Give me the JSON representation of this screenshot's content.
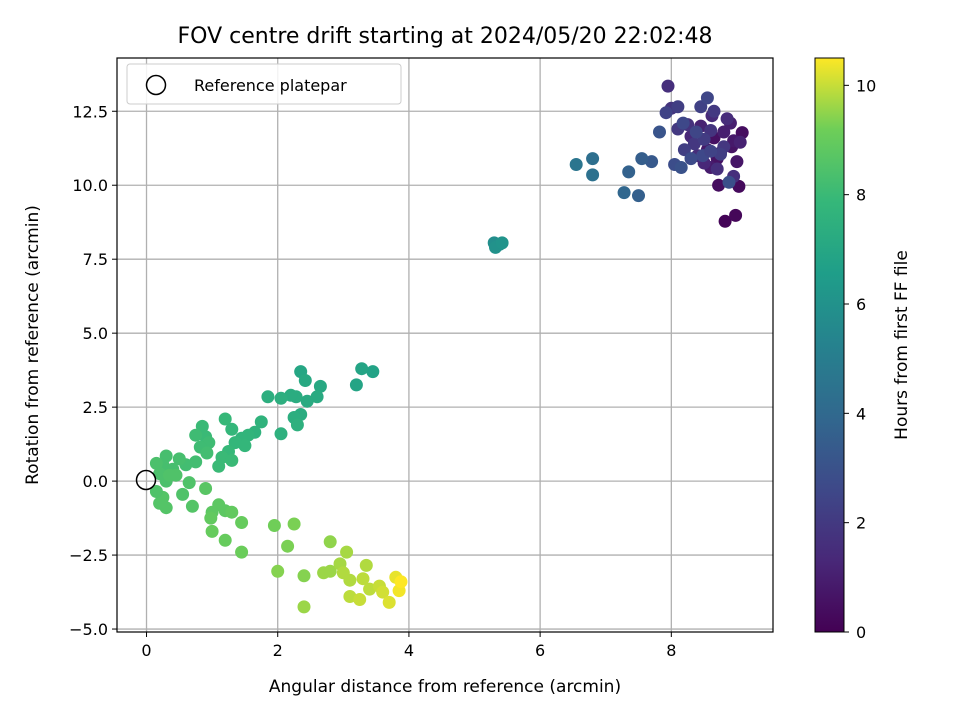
{
  "chart_data": {
    "type": "scatter",
    "title": "FOV centre drift starting at 2024/05/20 22:02:48",
    "xlabel": "Angular distance from reference (arcmin)",
    "ylabel": "Rotation from reference (arcmin)",
    "xlim": [
      -0.45,
      9.55
    ],
    "ylim": [
      -5.1,
      14.3
    ],
    "xticks": [
      0,
      2,
      4,
      6,
      8
    ],
    "xtick_labels": [
      "0",
      "2",
      "4",
      "6",
      "8"
    ],
    "yticks": [
      -5.0,
      -2.5,
      0.0,
      2.5,
      5.0,
      7.5,
      10.0,
      12.5
    ],
    "ytick_labels": [
      "−5.0",
      "−2.5",
      "0.0",
      "2.5",
      "5.0",
      "7.5",
      "10.0",
      "12.5"
    ],
    "grid": true,
    "colormap": "viridis",
    "colorbar": {
      "label": "Hours from first FF file",
      "range": [
        0,
        10.5
      ],
      "ticks": [
        0,
        2,
        4,
        6,
        8,
        10
      ],
      "tick_labels": [
        "0",
        "2",
        "4",
        "6",
        "8",
        "10"
      ]
    },
    "legend": {
      "placement": "top-left",
      "entries": [
        {
          "label": "Reference platepar",
          "marker": "open-circle"
        }
      ]
    },
    "reference_point": {
      "x": 0,
      "y": 0
    },
    "points": [
      [
        8.82,
        8.78,
        0.1
      ],
      [
        8.98,
        8.98,
        0.2
      ],
      [
        9.03,
        9.96,
        0.3
      ],
      [
        8.72,
        10.0,
        0.4
      ],
      [
        9.08,
        11.78,
        0.4
      ],
      [
        8.65,
        11.6,
        0.5
      ],
      [
        8.92,
        11.3,
        0.6
      ],
      [
        8.7,
        10.9,
        0.6
      ],
      [
        9.0,
        10.8,
        0.7
      ],
      [
        8.55,
        11.2,
        0.8
      ],
      [
        8.95,
        11.5,
        0.8
      ],
      [
        8.6,
        10.6,
        0.9
      ],
      [
        8.8,
        11.8,
        1.0
      ],
      [
        8.45,
        12.0,
        1.1
      ],
      [
        8.9,
        12.1,
        1.0
      ],
      [
        8.75,
        11.1,
        1.2
      ],
      [
        9.05,
        11.45,
        1.1
      ],
      [
        8.3,
        11.65,
        1.3
      ],
      [
        8.5,
        10.75,
        1.3
      ],
      [
        8.62,
        12.35,
        1.4
      ],
      [
        8.85,
        12.25,
        1.5
      ],
      [
        8.4,
        11.0,
        1.5
      ],
      [
        8.95,
        10.3,
        1.6
      ],
      [
        8.7,
        10.55,
        1.6
      ],
      [
        8.25,
        12.05,
        1.7
      ],
      [
        8.6,
        11.85,
        1.8
      ],
      [
        8.35,
        11.4,
        1.9
      ],
      [
        8.1,
        11.9,
        2.0
      ],
      [
        8.8,
        11.3,
        1.9
      ],
      [
        8.5,
        11.55,
        2.1
      ],
      [
        8.2,
        11.2,
        2.2
      ],
      [
        8.65,
        12.5,
        2.0
      ],
      [
        8.0,
        12.6,
        1.8
      ],
      [
        7.95,
        13.35,
        1.6
      ],
      [
        8.1,
        12.65,
        2.2
      ],
      [
        7.92,
        12.45,
        2.4
      ],
      [
        8.45,
        12.65,
        2.3
      ],
      [
        8.55,
        12.95,
        2.5
      ],
      [
        8.48,
        11.0,
        2.6
      ],
      [
        8.3,
        10.9,
        2.7
      ],
      [
        8.05,
        10.7,
        2.8
      ],
      [
        8.75,
        11.05,
        2.2
      ],
      [
        8.88,
        10.1,
        2.9
      ],
      [
        8.15,
        10.6,
        3.0
      ],
      [
        7.82,
        11.8,
        3.1
      ],
      [
        8.6,
        11.15,
        2.4
      ],
      [
        8.38,
        11.8,
        2.5
      ],
      [
        8.18,
        12.1,
        2.6
      ],
      [
        7.7,
        10.8,
        3.3
      ],
      [
        7.55,
        10.9,
        3.5
      ],
      [
        7.5,
        9.65,
        3.6
      ],
      [
        7.35,
        10.45,
        3.7
      ],
      [
        7.28,
        9.75,
        3.9
      ],
      [
        6.8,
        10.9,
        4.3
      ],
      [
        6.8,
        10.35,
        4.4
      ],
      [
        6.55,
        10.7,
        4.6
      ],
      [
        5.3,
        8.05,
        5.8
      ],
      [
        5.38,
        8.0,
        5.9
      ],
      [
        5.32,
        7.9,
        6.0
      ],
      [
        5.42,
        8.05,
        6.1
      ],
      [
        3.45,
        3.7,
        6.8
      ],
      [
        3.28,
        3.8,
        6.9
      ],
      [
        3.2,
        3.25,
        6.9
      ],
      [
        2.35,
        3.7,
        7.0
      ],
      [
        2.42,
        3.4,
        7.1
      ],
      [
        2.65,
        3.2,
        7.1
      ],
      [
        2.6,
        2.85,
        7.2
      ],
      [
        2.45,
        2.7,
        7.2
      ],
      [
        2.28,
        2.85,
        7.3
      ],
      [
        2.2,
        2.9,
        7.3
      ],
      [
        2.05,
        2.8,
        7.4
      ],
      [
        1.85,
        2.85,
        7.4
      ],
      [
        2.35,
        2.25,
        7.3
      ],
      [
        2.25,
        2.15,
        7.4
      ],
      [
        2.3,
        1.9,
        7.5
      ],
      [
        2.05,
        1.6,
        7.5
      ],
      [
        1.75,
        2.0,
        7.6
      ],
      [
        1.65,
        1.65,
        7.6
      ],
      [
        1.55,
        1.55,
        7.7
      ],
      [
        1.45,
        1.45,
        7.7
      ],
      [
        1.5,
        1.2,
        7.8
      ],
      [
        1.35,
        1.3,
        7.8
      ],
      [
        1.3,
        1.75,
        7.8
      ],
      [
        1.2,
        2.1,
        7.9
      ],
      [
        1.25,
        1.0,
        7.9
      ],
      [
        1.15,
        0.8,
        8.0
      ],
      [
        1.3,
        0.7,
        8.0
      ],
      [
        1.1,
        0.5,
        8.0
      ],
      [
        0.85,
        1.85,
        8.0
      ],
      [
        0.9,
        1.5,
        8.0
      ],
      [
        0.75,
        1.55,
        8.1
      ],
      [
        0.95,
        1.3,
        8.1
      ],
      [
        0.82,
        1.15,
        8.1
      ],
      [
        0.92,
        0.95,
        8.2
      ],
      [
        0.75,
        0.65,
        8.2
      ],
      [
        0.6,
        0.55,
        8.2
      ],
      [
        0.5,
        0.75,
        8.3
      ],
      [
        0.4,
        0.4,
        8.3
      ],
      [
        0.3,
        0.85,
        8.3
      ],
      [
        0.25,
        0.55,
        8.3
      ],
      [
        0.2,
        0.25,
        8.4
      ],
      [
        0.15,
        0.6,
        8.4
      ],
      [
        0.3,
        0.0,
        8.4
      ],
      [
        0.45,
        0.2,
        8.5
      ],
      [
        0.65,
        -0.05,
        8.5
      ],
      [
        0.55,
        -0.45,
        8.5
      ],
      [
        0.7,
        -0.85,
        8.6
      ],
      [
        0.25,
        -0.55,
        8.6
      ],
      [
        0.3,
        -0.9,
        8.6
      ],
      [
        0.2,
        -0.75,
        8.6
      ],
      [
        0.15,
        -0.35,
        8.5
      ],
      [
        0.35,
        0.2,
        8.5
      ],
      [
        0.9,
        -0.25,
        8.7
      ],
      [
        1.1,
        -0.8,
        8.8
      ],
      [
        1.0,
        -1.05,
        8.8
      ],
      [
        1.2,
        -1.0,
        8.8
      ],
      [
        0.98,
        -1.25,
        8.9
      ],
      [
        1.3,
        -1.05,
        8.9
      ],
      [
        1.45,
        -1.4,
        9.0
      ],
      [
        1.0,
        -1.7,
        9.0
      ],
      [
        1.2,
        -2.0,
        9.0
      ],
      [
        1.45,
        -2.4,
        9.1
      ],
      [
        1.95,
        -1.5,
        9.2
      ],
      [
        2.15,
        -2.2,
        9.3
      ],
      [
        2.25,
        -1.45,
        9.3
      ],
      [
        2.0,
        -3.05,
        9.4
      ],
      [
        2.4,
        -3.2,
        9.4
      ],
      [
        2.4,
        -4.25,
        9.6
      ],
      [
        2.8,
        -2.05,
        9.5
      ],
      [
        2.7,
        -3.1,
        9.6
      ],
      [
        2.8,
        -3.05,
        9.6
      ],
      [
        2.95,
        -2.8,
        9.7
      ],
      [
        3.05,
        -2.4,
        9.7
      ],
      [
        3.0,
        -3.1,
        9.8
      ],
      [
        3.1,
        -3.35,
        9.8
      ],
      [
        3.35,
        -2.85,
        9.8
      ],
      [
        3.3,
        -3.3,
        9.9
      ],
      [
        3.4,
        -3.65,
        9.9
      ],
      [
        3.1,
        -3.9,
        9.9
      ],
      [
        3.25,
        -4.0,
        10.0
      ],
      [
        3.55,
        -3.55,
        10.0
      ],
      [
        3.6,
        -3.75,
        10.1
      ],
      [
        3.7,
        -4.1,
        10.2
      ],
      [
        3.8,
        -3.25,
        10.3
      ],
      [
        3.85,
        -3.7,
        10.4
      ],
      [
        3.88,
        -3.4,
        10.5
      ]
    ]
  }
}
